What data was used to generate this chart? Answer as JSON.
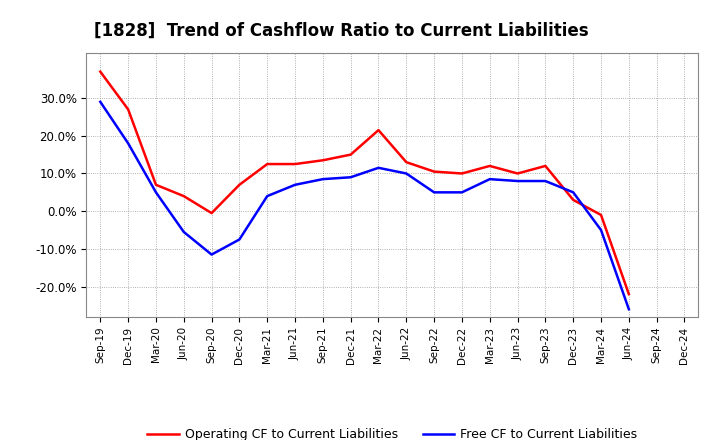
{
  "title": "[1828]  Trend of Cashflow Ratio to Current Liabilities",
  "x_labels": [
    "Sep-19",
    "Dec-19",
    "Mar-20",
    "Jun-20",
    "Sep-20",
    "Dec-20",
    "Mar-21",
    "Jun-21",
    "Sep-21",
    "Dec-21",
    "Mar-22",
    "Jun-22",
    "Sep-22",
    "Dec-22",
    "Mar-23",
    "Jun-23",
    "Sep-23",
    "Dec-23",
    "Mar-24",
    "Jun-24",
    "Sep-24",
    "Dec-24"
  ],
  "operating_cf": [
    0.37,
    0.27,
    0.07,
    0.04,
    -0.005,
    0.07,
    0.125,
    0.125,
    0.135,
    0.15,
    0.215,
    0.13,
    0.105,
    0.1,
    0.12,
    0.1,
    0.12,
    0.03,
    -0.01,
    -0.22,
    null,
    null
  ],
  "free_cf": [
    0.29,
    0.18,
    0.05,
    -0.055,
    -0.115,
    -0.075,
    0.04,
    0.07,
    0.085,
    0.09,
    0.115,
    0.1,
    0.05,
    0.05,
    0.085,
    0.08,
    0.08,
    0.05,
    -0.05,
    -0.26,
    null,
    null
  ],
  "ylim": [
    -0.28,
    0.42
  ],
  "yticks": [
    -0.2,
    -0.1,
    0.0,
    0.1,
    0.2,
    0.3
  ],
  "operating_color": "#FF0000",
  "free_color": "#0000FF",
  "background_color": "#FFFFFF",
  "grid_color": "#AAAAAA",
  "title_fontsize": 12,
  "legend_labels": [
    "Operating CF to Current Liabilities",
    "Free CF to Current Liabilities"
  ]
}
